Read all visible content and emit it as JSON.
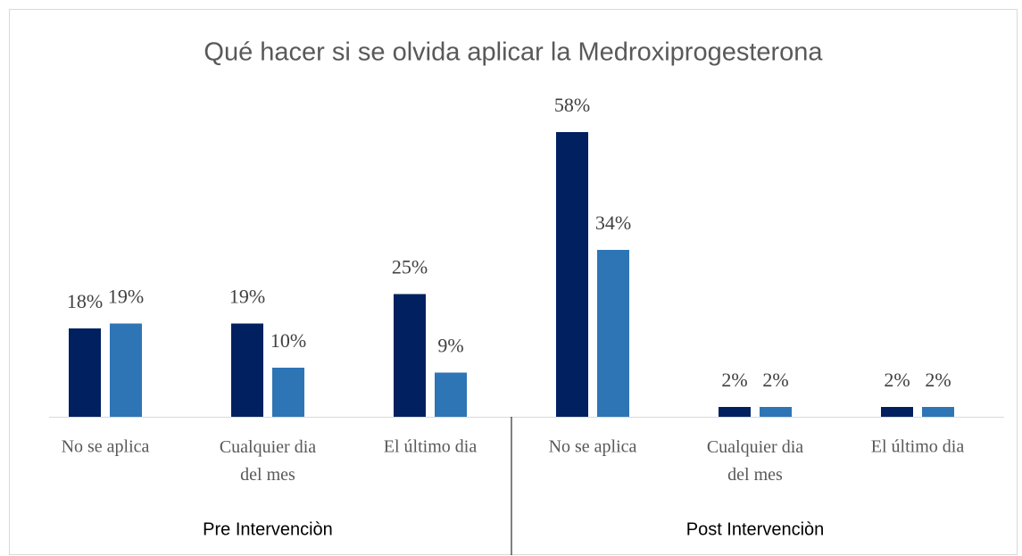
{
  "chart_data": {
    "type": "bar",
    "title": "Qué hacer si se olvida aplicar la Medroxiprogesterona",
    "groups": [
      {
        "name": "Pre Intervenciòn",
        "categories": [
          "No se aplica",
          "Cualquier dia del mes",
          "El último dia"
        ]
      },
      {
        "name": "Post Intervenciòn",
        "categories": [
          "No se aplica",
          "Cualquier dia del mes",
          "El último dia"
        ]
      }
    ],
    "series": [
      {
        "color": "#002060",
        "values": [
          18,
          19,
          25,
          58,
          2,
          2
        ],
        "value_labels": [
          "18%",
          "19%",
          "25%",
          "58%",
          "2%",
          "2%"
        ]
      },
      {
        "color": "#2e75b6",
        "values": [
          19,
          10,
          9,
          34,
          2,
          2
        ],
        "value_labels": [
          "19%",
          "10%",
          "9%",
          "34%",
          "2%",
          "2%"
        ]
      }
    ]
  }
}
